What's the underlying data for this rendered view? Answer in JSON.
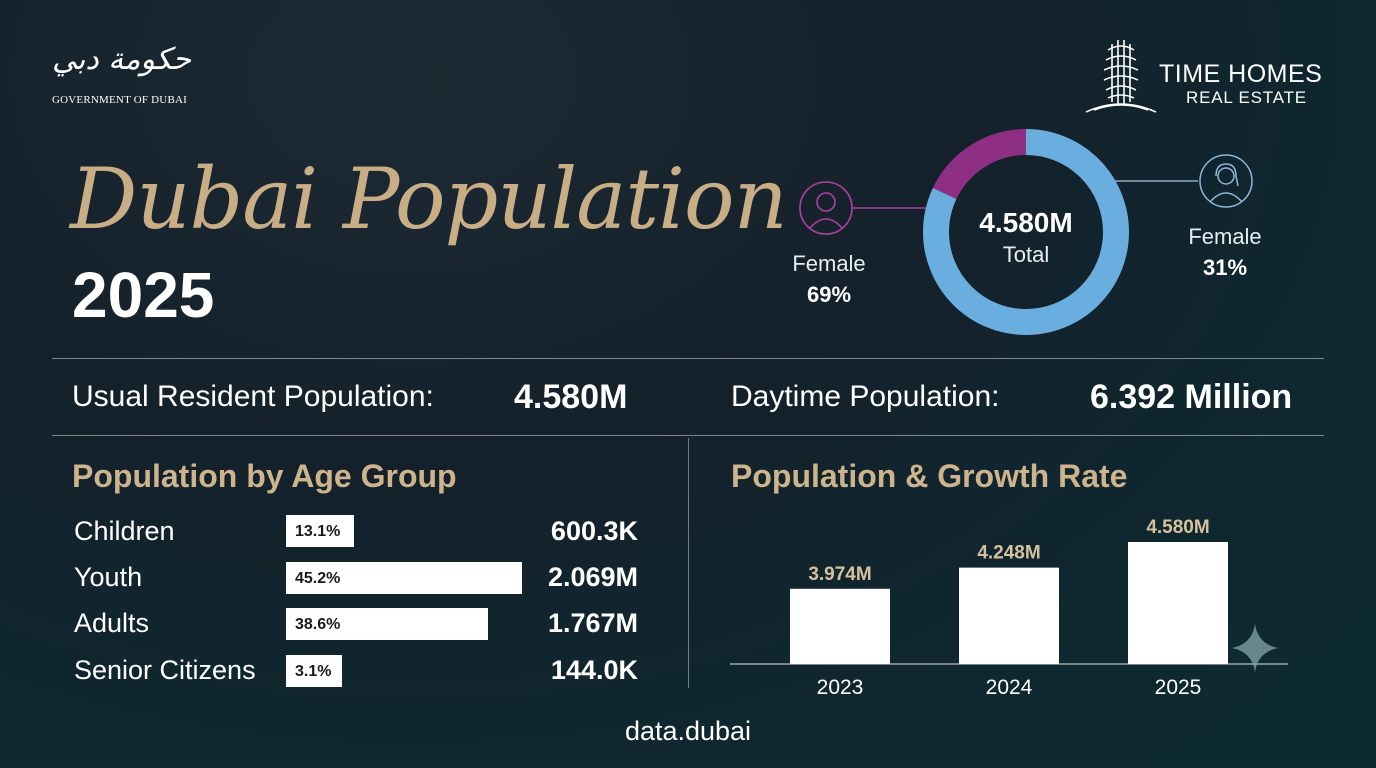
{
  "header": {
    "gov_arabic": "حكومة دبي",
    "gov_name": "GOVERNMENT OF DUBAI",
    "brand_name": "TIME HOMES",
    "brand_sub": "REAL ESTATE"
  },
  "title": {
    "script": "Dubai Population",
    "year": "2025"
  },
  "gender": {
    "total_value": "4.580M",
    "total_label": "Total",
    "left_label": "Female",
    "left_pct": "69%",
    "right_label": "Female",
    "right_pct": "31%",
    "colors": {
      "purple": "#8e2f83",
      "blue": "#6aaee0"
    }
  },
  "stats": {
    "resident_label": "Usual Resident Population:",
    "resident_value": "4.580M",
    "daytime_label": "Daytime Population:",
    "daytime_value": "6.392 Million"
  },
  "age_section": {
    "title": "Population by Age Group",
    "rows": [
      {
        "label": "Children",
        "pct_text": "13.1%",
        "pct": 13.1,
        "value": "600.3K"
      },
      {
        "label": "Youth",
        "pct_text": "45.2%",
        "pct": 45.2,
        "value": "2.069M"
      },
      {
        "label": "Adults",
        "pct_text": "38.6%",
        "pct": 38.6,
        "value": "1.767M"
      },
      {
        "label": "Senior Citizens",
        "pct_text": "3.1%",
        "pct": 3.1,
        "value": "144.0K"
      }
    ]
  },
  "growth_section": {
    "title": "Population & Growth Rate"
  },
  "chart_data": [
    {
      "type": "pie",
      "labels": [
        "Female",
        "Female"
      ],
      "values": [
        69,
        31
      ],
      "center_text": "4.580M Total"
    },
    {
      "type": "bar",
      "categories": [
        "2023",
        "2024",
        "2025"
      ],
      "values": [
        3.974,
        4.248,
        4.58
      ],
      "data_labels": [
        "3.974M",
        "4.248M",
        "4.580M"
      ],
      "title": "Population & Growth Rate",
      "xlabel": "",
      "ylabel": "",
      "grid": false
    }
  ],
  "footer": {
    "source": "data.dubai"
  }
}
